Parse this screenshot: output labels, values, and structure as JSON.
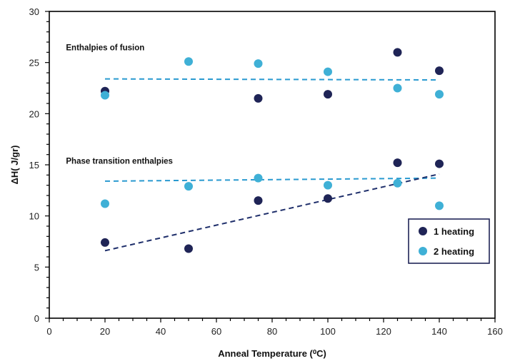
{
  "chart_data": {
    "type": "scatter",
    "xlabel": "Anneal Temperature (⁰C)",
    "ylabel": "ΔH( J/gr)",
    "xlim": [
      0,
      160
    ],
    "ylim": [
      0,
      30
    ],
    "xticks": [
      0,
      20,
      40,
      60,
      80,
      100,
      120,
      140,
      160
    ],
    "yticks": [
      0,
      5,
      10,
      15,
      20,
      25,
      30
    ],
    "grid": false,
    "legend_position": "bottom-right",
    "annotations": [
      {
        "text": "Enthalpies of fusion",
        "x": 6,
        "y": 26.2
      },
      {
        "text": "Phase transition enthalpies",
        "x": 6,
        "y": 15.1
      }
    ],
    "series": [
      {
        "name": "1 heating",
        "color": "#1f2456",
        "points": [
          {
            "x": 20,
            "y": 22.2
          },
          {
            "x": 75,
            "y": 21.5
          },
          {
            "x": 100,
            "y": 21.9
          },
          {
            "x": 125,
            "y": 26.0
          },
          {
            "x": 140,
            "y": 24.2
          },
          {
            "x": 20,
            "y": 7.4
          },
          {
            "x": 50,
            "y": 6.8
          },
          {
            "x": 75,
            "y": 11.5
          },
          {
            "x": 100,
            "y": 11.7
          },
          {
            "x": 125,
            "y": 15.2
          },
          {
            "x": 140,
            "y": 15.1
          }
        ]
      },
      {
        "name": "2 heating",
        "color": "#3fb0d6",
        "points": [
          {
            "x": 20,
            "y": 21.8
          },
          {
            "x": 50,
            "y": 25.1
          },
          {
            "x": 75,
            "y": 24.9
          },
          {
            "x": 100,
            "y": 24.1
          },
          {
            "x": 125,
            "y": 22.5
          },
          {
            "x": 140,
            "y": 21.9
          },
          {
            "x": 20,
            "y": 11.2
          },
          {
            "x": 50,
            "y": 12.9
          },
          {
            "x": 75,
            "y": 13.7
          },
          {
            "x": 100,
            "y": 13.0
          },
          {
            "x": 125,
            "y": 13.2
          },
          {
            "x": 140,
            "y": 11.0
          }
        ]
      }
    ],
    "trendlines": [
      {
        "color": "#2a9ad0",
        "x": [
          20,
          140
        ],
        "y": [
          23.4,
          23.3
        ]
      },
      {
        "color": "#2a9ad0",
        "x": [
          20,
          140
        ],
        "y": [
          13.4,
          13.7
        ]
      },
      {
        "color": "#1f2f6b",
        "x": [
          20,
          140
        ],
        "y": [
          6.6,
          14.1
        ]
      }
    ]
  }
}
